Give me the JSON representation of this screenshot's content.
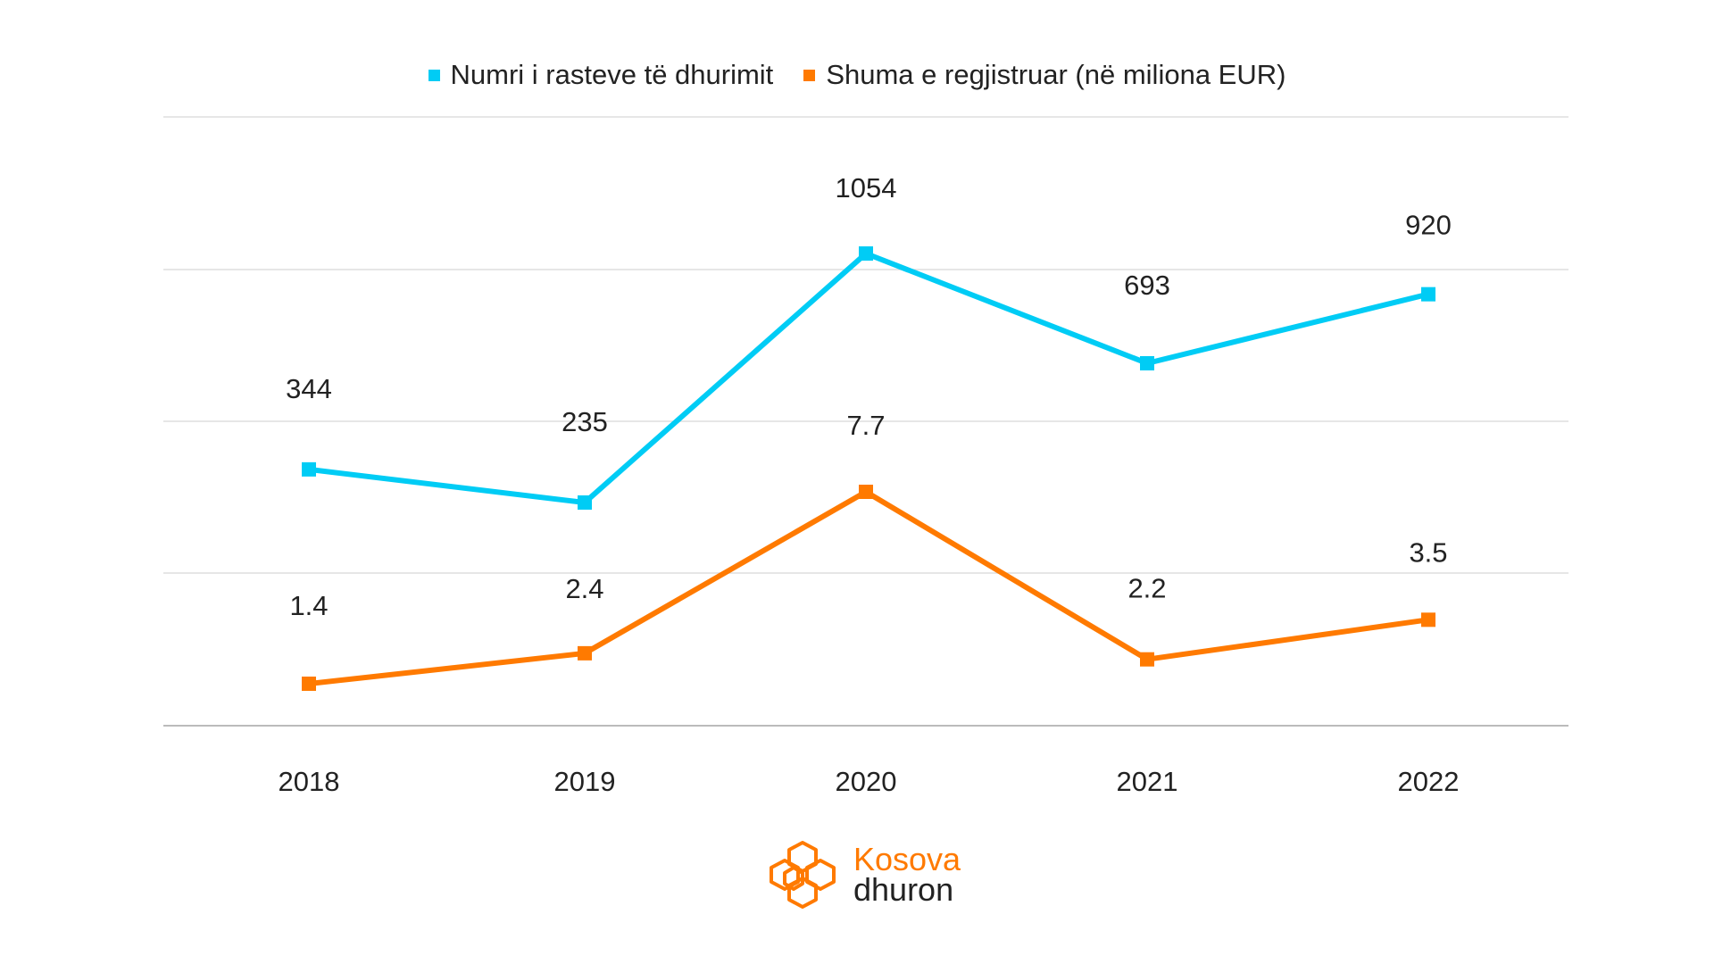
{
  "chart_data": {
    "type": "line",
    "categories": [
      "2018",
      "2019",
      "2020",
      "2021",
      "2022"
    ],
    "series": [
      {
        "name": "Numri i rasteve të dhurimit",
        "values": [
          344,
          235,
          1054,
          693,
          920
        ],
        "labels": [
          "344",
          "235",
          "1054",
          "693",
          "920"
        ],
        "color": "#00ccf5"
      },
      {
        "name": "Shuma e regjistruar (në miliona EUR)",
        "values": [
          1.4,
          2.4,
          7.7,
          2.2,
          3.5
        ],
        "labels": [
          "1.4",
          "2.4",
          "7.7",
          "2.2",
          "3.5"
        ],
        "color": "#ff7a00"
      }
    ],
    "grid": true,
    "legend_position": "top-center",
    "xlabel": "",
    "ylabel": ""
  },
  "logo": {
    "line1": "Kosova",
    "line2": "dhuron",
    "color": "#ff7a00"
  }
}
